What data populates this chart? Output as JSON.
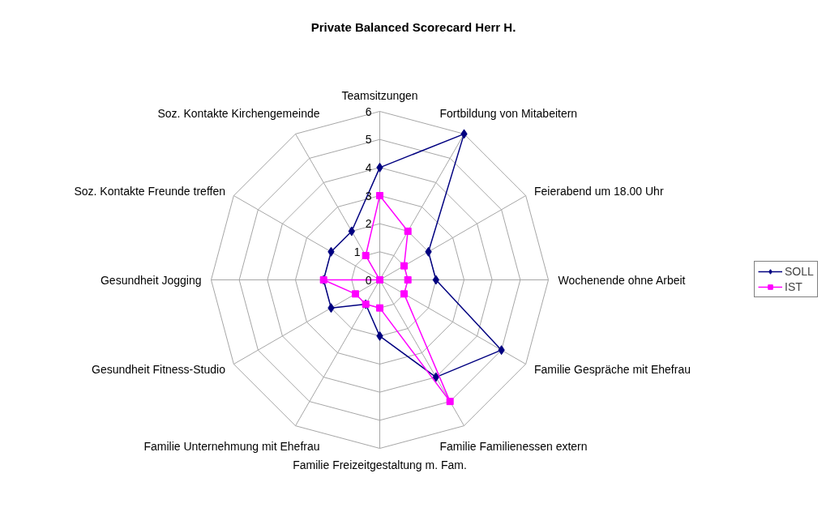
{
  "chart_data": {
    "type": "radar",
    "title": "Private Balanced Scorecard Herr H.",
    "categories": [
      "Teamsitzungen",
      "Fortbildung von Mitabeitern",
      "Feierabend um 18.00 Uhr",
      "Wochenende ohne Arbeit",
      "Familie Gespräche mit Ehefrau",
      "Familie Familienessen extern",
      "Familie Freizeitgestaltung m. Fam.",
      "Familie Unternehmung mit Ehefrau",
      "Gesundheit Fitness-Studio",
      "Gesundheit Jogging",
      "Soz. Kontakte Freunde treffen",
      "Soz. Kontakte Kirchengemeinde"
    ],
    "series": [
      {
        "name": "SOLL",
        "color": "#000080",
        "marker": "diamond",
        "values": [
          4,
          6,
          2,
          2,
          5,
          4,
          2,
          1,
          2,
          2,
          2,
          2
        ]
      },
      {
        "name": "IST",
        "color": "#ff00ff",
        "marker": "square",
        "values": [
          3,
          2,
          1,
          1,
          1,
          5,
          1,
          1,
          1,
          2,
          0,
          1
        ]
      }
    ],
    "ylim": [
      0,
      6
    ],
    "yticks": [
      0,
      1,
      2,
      3,
      4,
      5,
      6
    ],
    "grid": true,
    "legend": "right"
  }
}
